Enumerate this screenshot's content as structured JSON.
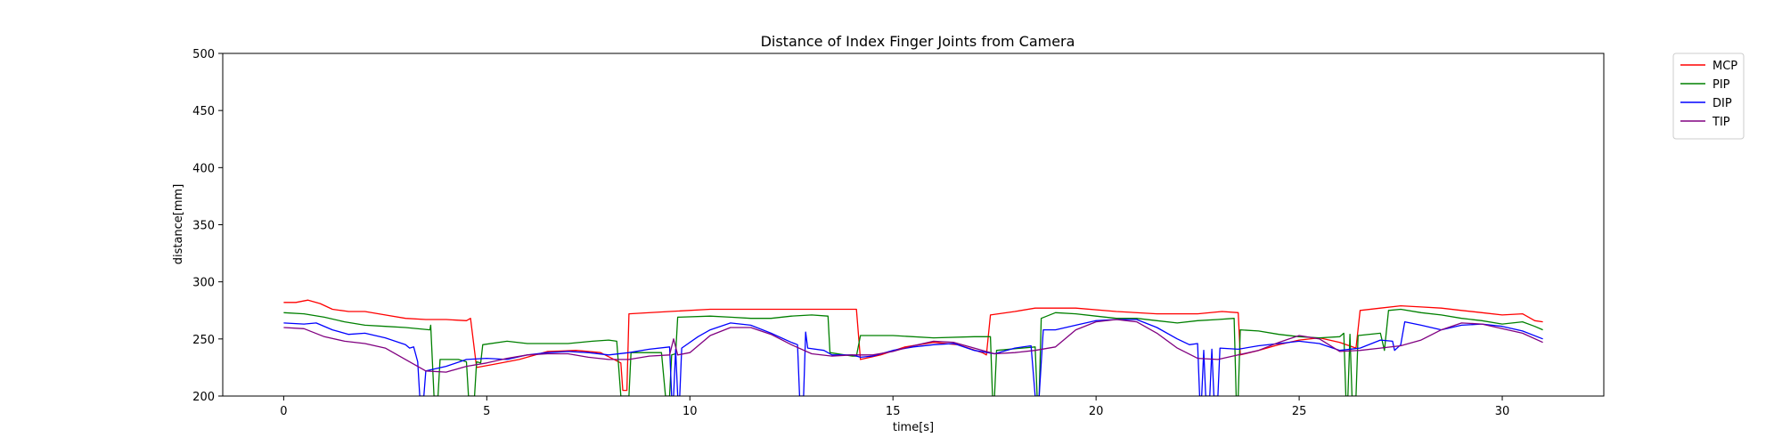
{
  "chart_data": {
    "type": "line",
    "title": "Distance of Index Finger Joints from Camera",
    "xlabel": "time[s]",
    "ylabel": "distance[mm]",
    "xlim": [
      -1.5,
      32.5
    ],
    "ylim": [
      200,
      500
    ],
    "xticks": [
      0,
      5,
      10,
      15,
      20,
      25,
      30
    ],
    "yticks": [
      200,
      250,
      300,
      350,
      400,
      450,
      500
    ],
    "grid": false,
    "legend": "outside-top-right",
    "series": [
      {
        "name": "MCP",
        "color": "#ff0000",
        "points": [
          [
            0,
            282
          ],
          [
            0.3,
            282
          ],
          [
            0.6,
            284
          ],
          [
            0.9,
            281
          ],
          [
            1.2,
            276
          ],
          [
            1.6,
            274
          ],
          [
            2.0,
            274
          ],
          [
            2.5,
            271
          ],
          [
            3.0,
            268
          ],
          [
            3.5,
            267
          ],
          [
            4.0,
            267
          ],
          [
            4.5,
            266
          ],
          [
            4.6,
            268
          ],
          [
            4.75,
            225
          ],
          [
            5.2,
            228
          ],
          [
            5.8,
            232
          ],
          [
            6.5,
            239
          ],
          [
            7.2,
            240
          ],
          [
            7.8,
            238
          ],
          [
            8.3,
            229
          ],
          [
            8.35,
            205
          ],
          [
            8.45,
            205
          ],
          [
            8.5,
            272
          ],
          [
            9.5,
            274
          ],
          [
            10.5,
            276
          ],
          [
            11.5,
            276
          ],
          [
            12.5,
            276
          ],
          [
            13.5,
            276
          ],
          [
            14.1,
            276
          ],
          [
            14.2,
            232
          ],
          [
            14.7,
            236
          ],
          [
            15.3,
            243
          ],
          [
            16.0,
            247
          ],
          [
            16.6,
            245
          ],
          [
            17.2,
            238
          ],
          [
            17.3,
            236
          ],
          [
            17.4,
            271
          ],
          [
            18.0,
            274
          ],
          [
            18.5,
            277
          ],
          [
            19.5,
            277
          ],
          [
            20.5,
            274
          ],
          [
            21.5,
            272
          ],
          [
            22.5,
            272
          ],
          [
            23.1,
            274
          ],
          [
            23.5,
            273
          ],
          [
            23.55,
            236
          ],
          [
            24.0,
            240
          ],
          [
            24.5,
            245
          ],
          [
            25.0,
            249
          ],
          [
            25.5,
            251
          ],
          [
            26.0,
            247
          ],
          [
            26.4,
            242
          ],
          [
            26.5,
            275
          ],
          [
            27.0,
            277
          ],
          [
            27.5,
            279
          ],
          [
            28.0,
            278
          ],
          [
            28.5,
            277
          ],
          [
            29.0,
            275
          ],
          [
            29.5,
            273
          ],
          [
            30.0,
            271
          ],
          [
            30.5,
            272
          ],
          [
            30.8,
            266
          ],
          [
            31.0,
            265
          ]
        ]
      },
      {
        "name": "PIP",
        "color": "#008000",
        "points": [
          [
            0,
            273
          ],
          [
            0.5,
            272
          ],
          [
            1.0,
            269
          ],
          [
            1.5,
            265
          ],
          [
            2.0,
            262
          ],
          [
            2.5,
            261
          ],
          [
            3.0,
            260
          ],
          [
            3.6,
            258
          ],
          [
            3.62,
            262
          ],
          [
            3.7,
            200
          ],
          [
            3.8,
            200
          ],
          [
            3.85,
            232
          ],
          [
            4.3,
            232
          ],
          [
            4.5,
            230
          ],
          [
            4.55,
            200
          ],
          [
            4.7,
            200
          ],
          [
            4.75,
            230
          ],
          [
            4.85,
            229
          ],
          [
            4.9,
            245
          ],
          [
            5.5,
            248
          ],
          [
            6.0,
            246
          ],
          [
            7.0,
            246
          ],
          [
            7.6,
            248
          ],
          [
            8.0,
            249
          ],
          [
            8.2,
            248
          ],
          [
            8.3,
            200
          ],
          [
            8.5,
            200
          ],
          [
            8.55,
            238
          ],
          [
            9.3,
            238
          ],
          [
            9.4,
            200
          ],
          [
            9.5,
            200
          ],
          [
            9.55,
            236
          ],
          [
            9.65,
            237
          ],
          [
            9.7,
            269
          ],
          [
            10.5,
            270
          ],
          [
            11.0,
            269
          ],
          [
            11.5,
            268
          ],
          [
            12.0,
            268
          ],
          [
            12.5,
            270
          ],
          [
            13.0,
            271
          ],
          [
            13.4,
            270
          ],
          [
            13.45,
            238
          ],
          [
            14.0,
            235
          ],
          [
            14.1,
            235
          ],
          [
            14.2,
            253
          ],
          [
            15.0,
            253
          ],
          [
            16.0,
            251
          ],
          [
            17.0,
            252
          ],
          [
            17.4,
            252
          ],
          [
            17.45,
            200
          ],
          [
            17.5,
            200
          ],
          [
            17.55,
            240
          ],
          [
            18.5,
            243
          ],
          [
            18.55,
            200
          ],
          [
            18.6,
            200
          ],
          [
            18.65,
            268
          ],
          [
            19.0,
            273
          ],
          [
            19.5,
            272
          ],
          [
            20.0,
            270
          ],
          [
            20.5,
            268
          ],
          [
            21.0,
            268
          ],
          [
            21.5,
            266
          ],
          [
            22.0,
            264
          ],
          [
            22.5,
            266
          ],
          [
            23.0,
            267
          ],
          [
            23.4,
            268
          ],
          [
            23.45,
            200
          ],
          [
            23.5,
            200
          ],
          [
            23.55,
            258
          ],
          [
            24.0,
            257
          ],
          [
            24.5,
            254
          ],
          [
            25.0,
            252
          ],
          [
            25.5,
            251
          ],
          [
            26.0,
            252
          ],
          [
            26.1,
            255
          ],
          [
            26.15,
            200
          ],
          [
            26.2,
            200
          ],
          [
            26.25,
            254
          ],
          [
            26.3,
            200
          ],
          [
            26.4,
            200
          ],
          [
            26.45,
            253
          ],
          [
            27.0,
            255
          ],
          [
            27.1,
            240
          ],
          [
            27.2,
            275
          ],
          [
            27.5,
            276
          ],
          [
            28.0,
            273
          ],
          [
            28.5,
            271
          ],
          [
            29.0,
            268
          ],
          [
            29.5,
            266
          ],
          [
            30.0,
            263
          ],
          [
            30.5,
            265
          ],
          [
            30.8,
            261
          ],
          [
            31.0,
            258
          ]
        ]
      },
      {
        "name": "DIP",
        "color": "#0000ff",
        "points": [
          [
            0,
            264
          ],
          [
            0.5,
            263
          ],
          [
            0.8,
            264
          ],
          [
            1.2,
            258
          ],
          [
            1.6,
            254
          ],
          [
            2.0,
            255
          ],
          [
            2.5,
            251
          ],
          [
            3.0,
            245
          ],
          [
            3.1,
            242
          ],
          [
            3.2,
            243
          ],
          [
            3.3,
            230
          ],
          [
            3.35,
            200
          ],
          [
            3.45,
            200
          ],
          [
            3.5,
            222
          ],
          [
            4.0,
            226
          ],
          [
            4.5,
            232
          ],
          [
            5.0,
            233
          ],
          [
            5.5,
            232
          ],
          [
            6.0,
            236
          ],
          [
            6.5,
            238
          ],
          [
            7.0,
            239
          ],
          [
            7.5,
            238
          ],
          [
            8.0,
            236
          ],
          [
            8.5,
            238
          ],
          [
            9.0,
            241
          ],
          [
            9.5,
            243
          ],
          [
            9.55,
            200
          ],
          [
            9.6,
            200
          ],
          [
            9.65,
            241
          ],
          [
            9.7,
            200
          ],
          [
            9.75,
            200
          ],
          [
            9.8,
            242
          ],
          [
            10.2,
            252
          ],
          [
            10.5,
            258
          ],
          [
            11.0,
            264
          ],
          [
            11.5,
            262
          ],
          [
            12.0,
            255
          ],
          [
            12.5,
            247
          ],
          [
            12.65,
            245
          ],
          [
            12.7,
            200
          ],
          [
            12.8,
            200
          ],
          [
            12.85,
            256
          ],
          [
            12.9,
            242
          ],
          [
            13.3,
            240
          ],
          [
            13.5,
            236
          ],
          [
            14.0,
            236
          ],
          [
            14.2,
            234
          ],
          [
            14.5,
            235
          ],
          [
            15.0,
            240
          ],
          [
            15.5,
            243
          ],
          [
            16.0,
            245
          ],
          [
            16.5,
            246
          ],
          [
            17.0,
            240
          ],
          [
            17.5,
            237
          ],
          [
            18.0,
            242
          ],
          [
            18.4,
            244
          ],
          [
            18.5,
            200
          ],
          [
            18.6,
            200
          ],
          [
            18.7,
            258
          ],
          [
            19.0,
            258
          ],
          [
            19.5,
            262
          ],
          [
            20.0,
            266
          ],
          [
            20.5,
            267
          ],
          [
            21.0,
            267
          ],
          [
            21.5,
            260
          ],
          [
            22.0,
            250
          ],
          [
            22.3,
            245
          ],
          [
            22.5,
            246
          ],
          [
            22.55,
            200
          ],
          [
            22.6,
            200
          ],
          [
            22.65,
            240
          ],
          [
            22.7,
            200
          ],
          [
            22.8,
            200
          ],
          [
            22.85,
            241
          ],
          [
            22.9,
            200
          ],
          [
            23.0,
            200
          ],
          [
            23.05,
            242
          ],
          [
            23.5,
            241
          ],
          [
            24.0,
            244
          ],
          [
            24.5,
            246
          ],
          [
            25.0,
            248
          ],
          [
            25.5,
            246
          ],
          [
            26.0,
            240
          ],
          [
            26.5,
            242
          ],
          [
            27.0,
            249
          ],
          [
            27.3,
            248
          ],
          [
            27.35,
            240
          ],
          [
            27.5,
            245
          ],
          [
            27.6,
            265
          ],
          [
            28.0,
            262
          ],
          [
            28.5,
            258
          ],
          [
            29.0,
            262
          ],
          [
            29.5,
            263
          ],
          [
            30.0,
            261
          ],
          [
            30.5,
            257
          ],
          [
            31.0,
            250
          ]
        ]
      },
      {
        "name": "TIP",
        "color": "#800080",
        "points": [
          [
            0,
            260
          ],
          [
            0.5,
            259
          ],
          [
            1.0,
            252
          ],
          [
            1.5,
            248
          ],
          [
            2.0,
            246
          ],
          [
            2.5,
            242
          ],
          [
            3.0,
            232
          ],
          [
            3.5,
            222
          ],
          [
            4.0,
            221
          ],
          [
            4.5,
            226
          ],
          [
            5.0,
            229
          ],
          [
            5.5,
            233
          ],
          [
            6.0,
            236
          ],
          [
            6.5,
            237
          ],
          [
            7.0,
            237
          ],
          [
            7.5,
            234
          ],
          [
            8.0,
            232
          ],
          [
            8.5,
            232
          ],
          [
            9.0,
            235
          ],
          [
            9.5,
            236
          ],
          [
            9.6,
            250
          ],
          [
            9.7,
            236
          ],
          [
            10.0,
            238
          ],
          [
            10.5,
            253
          ],
          [
            11.0,
            260
          ],
          [
            11.5,
            260
          ],
          [
            12.0,
            254
          ],
          [
            12.5,
            245
          ],
          [
            13.0,
            237
          ],
          [
            13.5,
            235
          ],
          [
            14.0,
            236
          ],
          [
            14.5,
            236
          ],
          [
            15.0,
            239
          ],
          [
            15.5,
            244
          ],
          [
            16.0,
            248
          ],
          [
            16.5,
            247
          ],
          [
            17.0,
            242
          ],
          [
            17.5,
            237
          ],
          [
            18.0,
            238
          ],
          [
            18.5,
            240
          ],
          [
            19.0,
            243
          ],
          [
            19.5,
            258
          ],
          [
            20.0,
            265
          ],
          [
            20.5,
            267
          ],
          [
            21.0,
            265
          ],
          [
            21.5,
            255
          ],
          [
            22.0,
            242
          ],
          [
            22.5,
            233
          ],
          [
            23.0,
            232
          ],
          [
            23.5,
            236
          ],
          [
            24.0,
            240
          ],
          [
            24.5,
            247
          ],
          [
            25.0,
            253
          ],
          [
            25.5,
            250
          ],
          [
            26.0,
            239
          ],
          [
            26.5,
            240
          ],
          [
            27.0,
            242
          ],
          [
            27.5,
            244
          ],
          [
            28.0,
            249
          ],
          [
            28.5,
            258
          ],
          [
            29.0,
            264
          ],
          [
            29.5,
            263
          ],
          [
            30.0,
            259
          ],
          [
            30.5,
            255
          ],
          [
            31.0,
            247
          ]
        ]
      }
    ]
  }
}
